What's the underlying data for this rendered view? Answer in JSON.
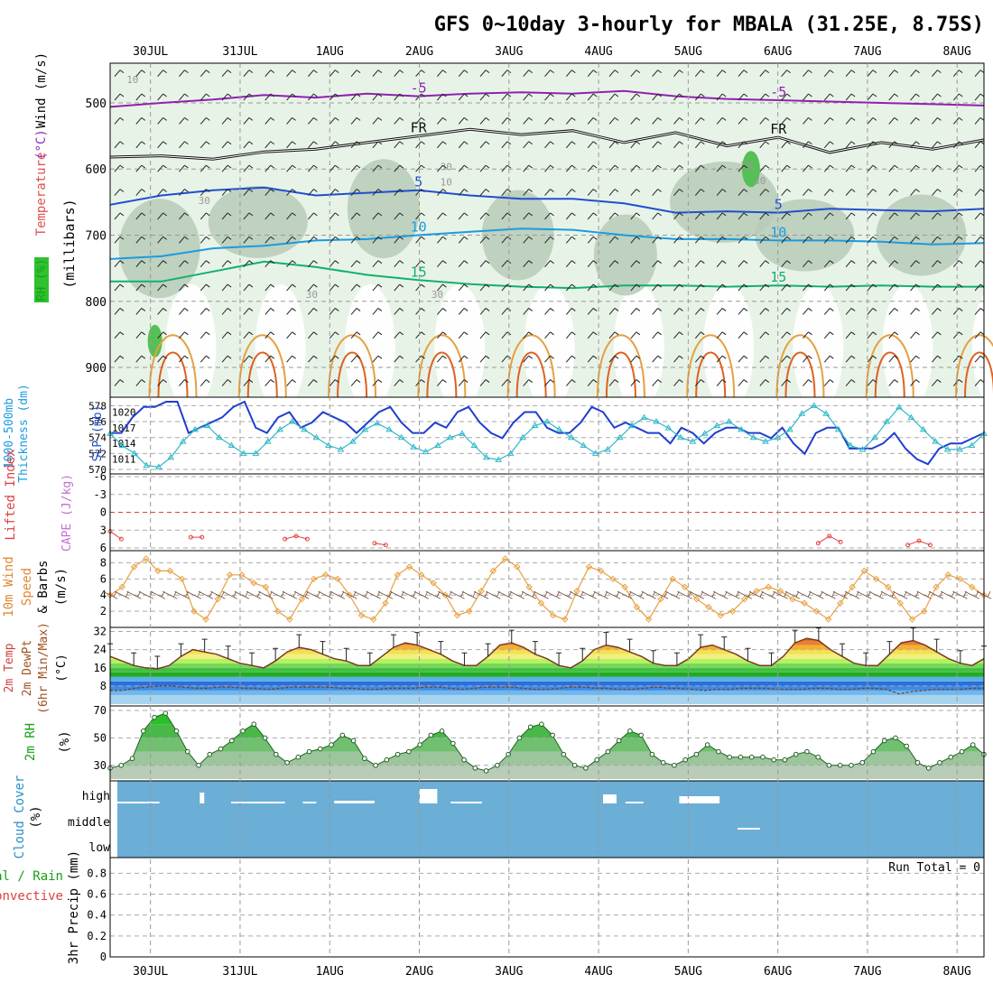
{
  "chart_data": {
    "type": "meteogram",
    "title": "GFS 0~10day 3-hourly for MBALA (31.25E, 8.75S)",
    "date_labels": [
      "30JUL",
      "31JUL",
      "1AUG",
      "2AUG",
      "3AUG",
      "4AUG",
      "5AUG",
      "6AUG",
      "7AUG",
      "8AUG"
    ],
    "time_range_days": [
      -0.45,
      9.3
    ],
    "panels": [
      {
        "id": "upper_air",
        "ylabels": [
          {
            "text": "RH (%)",
            "color": "#18a018"
          },
          {
            "text": "Temperature",
            "color": "#e05050"
          },
          {
            "text": "(°C)",
            "color": "#8a2fc0"
          },
          {
            "text": "Wind (m/s)",
            "color": "#000000"
          },
          {
            "text": "(millibars)",
            "color": "#000000"
          }
        ],
        "ylim": [
          440,
          945
        ],
        "yticks": [
          500,
          600,
          700,
          800,
          900
        ],
        "temperature_isotherms": [
          {
            "label": "-5",
            "color": "#9020b0",
            "mb": [
              506,
              500,
              495,
              488,
              492,
              486,
              490,
              486,
              484,
              486,
              482,
              490,
              494,
              496,
              498,
              500,
              502,
              504
            ]
          },
          {
            "label": "FR",
            "color": "#111111",
            "mb": [
              582,
              580,
              585,
              574,
              570,
              560,
              550,
              540,
              548,
              542,
              560,
              545,
              565,
              552,
              575,
              560,
              570,
              556
            ]
          },
          {
            "label": "5",
            "color": "#1f4fd0",
            "mb": [
              654,
              640,
              632,
              628,
              640,
              636,
              632,
              640,
              645,
              645,
              652,
              666,
              664,
              666,
              660,
              662,
              664,
              660
            ]
          },
          {
            "label": "10",
            "color": "#1b9be0",
            "mb": [
              736,
              732,
              720,
              716,
              708,
              706,
              700,
              695,
              690,
              692,
              700,
              706,
              706,
              708,
              708,
              710,
              714,
              712
            ]
          },
          {
            "label": "15",
            "color": "#12b070",
            "mb": [
              770,
              770,
              755,
              740,
              748,
              760,
              768,
              774,
              778,
              780,
              776,
              776,
              778,
              776,
              778,
              776,
              778,
              778
            ]
          }
        ],
        "rh_contour_labels": [
          "10",
          "30",
          "30",
          "30",
          "10",
          "30",
          "70",
          "30"
        ],
        "fr_labels": [
          "FR",
          "FR",
          "FR"
        ]
      },
      {
        "id": "slp_thickness",
        "ylabels": [
          {
            "text": "1000-500mb",
            "color": "#1b9be0"
          },
          {
            "text": "Thickness (dm)",
            "color": "#1b9be0"
          },
          {
            "text": "SLP (mb)",
            "color": "#1f4fd0"
          }
        ],
        "left_ticks": [
          "578",
          "576",
          "574",
          "572",
          "570"
        ],
        "right_ticks": [
          "1020",
          "1017",
          "1014",
          "1011"
        ],
        "slp_mb": [
          1016,
          1016,
          1019,
          1021,
          1021,
          1022,
          1022,
          1016,
          1017,
          1018,
          1019,
          1021,
          1022,
          1017,
          1016,
          1019,
          1020,
          1017,
          1018,
          1020,
          1019,
          1018,
          1016,
          1018,
          1020,
          1021,
          1018,
          1016,
          1016,
          1018,
          1017,
          1020,
          1021,
          1018,
          1016,
          1015,
          1018,
          1020,
          1020,
          1017,
          1016,
          1016,
          1018,
          1021,
          1020,
          1017,
          1018,
          1017,
          1016,
          1016,
          1014,
          1017,
          1016,
          1014,
          1016,
          1017,
          1017,
          1016,
          1016,
          1015,
          1017,
          1014,
          1012,
          1016,
          1017,
          1017,
          1013,
          1013,
          1013,
          1014,
          1016,
          1013,
          1011,
          1010,
          1013,
          1014,
          1014,
          1015,
          1016
        ],
        "thickness_dm": [
          574.5,
          573,
          572,
          570.5,
          570.3,
          571.5,
          573.5,
          575,
          575.5,
          574,
          573,
          572,
          572,
          573.5,
          575,
          576,
          575,
          574,
          573,
          572.5,
          573.5,
          575,
          575.8,
          575,
          574,
          572.8,
          572.2,
          573,
          574,
          574.5,
          573,
          571.5,
          571.2,
          572,
          574,
          575.5,
          576,
          575,
          574,
          573,
          572,
          572.5,
          574,
          575.5,
          576.5,
          576,
          575.2,
          574,
          573.5,
          574.5,
          575.5,
          576,
          575,
          574,
          573.5,
          574,
          575,
          577,
          578,
          577,
          575,
          573,
          572.5,
          574,
          576,
          577.8,
          576.5,
          575,
          573.5,
          572.5,
          572.5,
          573,
          574.5
        ]
      },
      {
        "id": "cape_li",
        "ylabels": [
          {
            "text": "Lifted Index",
            "color": "#e04040"
          },
          {
            "text": "CAPE (J/kg)",
            "color": "#c070d0"
          }
        ],
        "yticks": [
          "-6",
          "-3",
          "0",
          "3",
          "6"
        ],
        "li_segments": [
          {
            "day": -0.45,
            "values": [
              3.2,
              4.5
            ]
          },
          {
            "day": 0.45,
            "values": [
              4.2,
              4.2
            ]
          },
          {
            "day": 1.5,
            "values": [
              4.5,
              4.0,
              4.5
            ]
          },
          {
            "day": 2.5,
            "values": [
              5.2,
              5.5
            ]
          },
          {
            "day": 7.45,
            "values": [
              5.2,
              4.0,
              5.0
            ]
          },
          {
            "day": 8.45,
            "values": [
              5.5,
              4.8,
              5.5
            ]
          }
        ]
      },
      {
        "id": "wind10m",
        "ylabels": [
          {
            "text": "10m Wind",
            "color": "#e08830"
          },
          {
            "text": "Speed",
            "color": "#e08830"
          },
          {
            "text": "& Barbs",
            "color": "#000000"
          },
          {
            "text": "(m/s)",
            "color": "#000000"
          }
        ],
        "yticks": [
          "8",
          "6",
          "4",
          "2"
        ],
        "speed_ms": [
          4,
          5,
          7.5,
          8.5,
          7,
          7,
          6,
          2,
          1,
          3.5,
          6.5,
          6.5,
          5.5,
          5,
          2,
          1,
          3.5,
          6,
          6.5,
          6,
          4,
          1.5,
          1,
          3,
          6.5,
          7.5,
          6.5,
          5.5,
          4,
          1.5,
          2,
          4.5,
          7,
          8.5,
          7.5,
          5,
          3,
          1.5,
          1,
          4.5,
          7.5,
          7,
          6,
          5,
          2.5,
          1,
          3.5,
          6,
          5,
          3.5,
          2.5,
          1.5,
          2,
          3.5,
          4.5,
          5,
          4.5,
          3.5,
          3,
          2,
          1,
          3,
          5,
          7,
          6,
          5,
          3,
          1,
          2,
          5,
          6.5,
          6,
          5,
          4
        ]
      },
      {
        "id": "temperature2m",
        "ylabels": [
          {
            "text": "2m Temp",
            "color": "#d04040"
          },
          {
            "text": "2m DewPt",
            "color": "#a05020"
          },
          {
            "text": "(6hr Min/Max)",
            "color": "#a05020"
          },
          {
            "text": "(°C)",
            "color": "#000000"
          }
        ],
        "yticks": [
          "32",
          "24",
          "16",
          "8"
        ],
        "temp_c": [
          21,
          19,
          17,
          16,
          15.5,
          17,
          21,
          24,
          23,
          22,
          20,
          18,
          17,
          16,
          19,
          23,
          25,
          24,
          22,
          20,
          19,
          17,
          17,
          21,
          25,
          27,
          26,
          24,
          22,
          19,
          17,
          17,
          21,
          26,
          27,
          25,
          22,
          20,
          17,
          16,
          19,
          24,
          26,
          25,
          23,
          21,
          18,
          17,
          17,
          20,
          25,
          26,
          24,
          22,
          19,
          17,
          17,
          21,
          27,
          29,
          28,
          24,
          21,
          18,
          17,
          17,
          22,
          27,
          28,
          26,
          23,
          20,
          18,
          17,
          20
        ],
        "dewpoint_c": [
          6,
          6,
          7,
          7.5,
          8,
          8,
          7.5,
          7,
          7,
          7.5,
          7.5,
          7,
          7,
          6.5,
          7,
          7.5,
          7.5,
          7.5,
          7.5,
          7,
          7,
          6.5,
          6.5,
          7,
          7,
          7,
          7.5,
          7.5,
          7,
          6.5,
          7,
          7.5,
          7.5,
          7.5,
          7,
          6.5,
          6.5,
          7,
          7.5,
          7.5,
          7,
          7,
          6.5,
          6.5,
          7,
          7.5,
          7,
          7,
          6.5,
          6,
          6.5,
          6.5,
          7,
          7,
          7,
          6.5,
          6.5,
          6.5,
          7,
          7,
          6.5,
          6.5,
          7,
          7,
          6.5,
          4.5,
          5.5,
          6,
          6.5,
          6.5,
          6.5,
          7,
          7
        ]
      },
      {
        "id": "rh2m",
        "ylabels": [
          {
            "text": "2m RH",
            "color": "#18a018"
          },
          {
            "text": "(%)",
            "color": "#000000"
          }
        ],
        "yticks": [
          "70",
          "50",
          "30"
        ],
        "rh_pct": [
          28,
          30,
          35,
          55,
          65,
          68,
          55,
          40,
          30,
          38,
          42,
          48,
          55,
          60,
          50,
          38,
          32,
          36,
          40,
          42,
          45,
          52,
          48,
          35,
          30,
          34,
          38,
          40,
          45,
          52,
          55,
          46,
          34,
          28,
          26,
          30,
          38,
          50,
          58,
          60,
          52,
          38,
          30,
          28,
          34,
          40,
          48,
          55,
          52,
          38,
          32,
          30,
          34,
          38,
          45,
          40,
          36,
          36,
          36,
          36,
          34,
          34,
          38,
          40,
          36,
          30,
          30,
          30,
          32,
          40,
          48,
          50,
          44,
          32,
          28,
          32,
          36,
          40,
          45,
          38
        ]
      },
      {
        "id": "cloud_cover",
        "ylabels": [
          {
            "text": "Cloud Cover",
            "color": "#2a90c8"
          },
          {
            "text": "(%)",
            "color": "#000000"
          }
        ],
        "level_labels": [
          "high",
          "middle",
          "low"
        ],
        "background_color": "#6baed6"
      },
      {
        "id": "precip",
        "ylabels": [
          {
            "text": "Total / Rain",
            "color": "#18a018"
          },
          {
            "text": "Convective",
            "color": "#e04040"
          },
          {
            "text": "3hr Precip (mm)",
            "color": "#000000"
          }
        ],
        "yticks": [
          "0.8",
          "0.6",
          "0.4",
          "0.2",
          "0"
        ],
        "run_total_text": "Run Total = 0",
        "values_mm": []
      }
    ]
  }
}
